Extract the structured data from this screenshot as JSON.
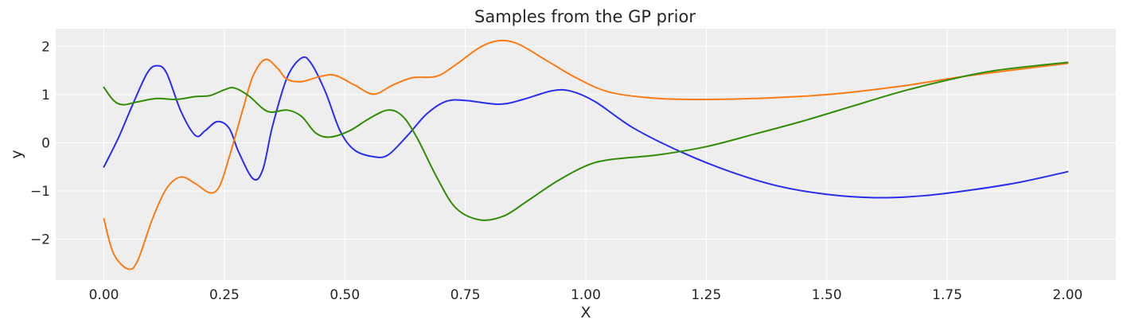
{
  "chart_data": {
    "type": "line",
    "title": "Samples from the GP prior",
    "xlabel": "X",
    "ylabel": "y",
    "xlim": [
      -0.1,
      2.1
    ],
    "ylim": [
      -2.85,
      2.37
    ],
    "xticks": [
      0.0,
      0.25,
      0.5,
      0.75,
      1.0,
      1.25,
      1.5,
      1.75,
      2.0
    ],
    "xtick_labels": [
      "0.00",
      "0.25",
      "0.50",
      "0.75",
      "1.00",
      "1.25",
      "1.50",
      "1.75",
      "2.00"
    ],
    "yticks": [
      -2,
      -1,
      0,
      1,
      2
    ],
    "ytick_labels": [
      "−2",
      "−1",
      "0",
      "1",
      "2"
    ],
    "grid": true,
    "legend": false,
    "series": [
      {
        "color": "#2a2eec",
        "points": [
          [
            0.0,
            -0.5
          ],
          [
            0.03,
            0.1
          ],
          [
            0.06,
            0.8
          ],
          [
            0.09,
            1.45
          ],
          [
            0.11,
            1.6
          ],
          [
            0.13,
            1.45
          ],
          [
            0.16,
            0.65
          ],
          [
            0.19,
            0.15
          ],
          [
            0.21,
            0.25
          ],
          [
            0.235,
            0.44
          ],
          [
            0.26,
            0.3
          ],
          [
            0.28,
            -0.2
          ],
          [
            0.31,
            -0.75
          ],
          [
            0.33,
            -0.55
          ],
          [
            0.35,
            0.35
          ],
          [
            0.38,
            1.35
          ],
          [
            0.41,
            1.76
          ],
          [
            0.43,
            1.65
          ],
          [
            0.46,
            1.05
          ],
          [
            0.49,
            0.25
          ],
          [
            0.52,
            -0.15
          ],
          [
            0.56,
            -0.29
          ],
          [
            0.59,
            -0.25
          ],
          [
            0.63,
            0.15
          ],
          [
            0.67,
            0.6
          ],
          [
            0.71,
            0.86
          ],
          [
            0.75,
            0.88
          ],
          [
            0.82,
            0.8
          ],
          [
            0.87,
            0.9
          ],
          [
            0.93,
            1.08
          ],
          [
            0.97,
            1.07
          ],
          [
            1.02,
            0.85
          ],
          [
            1.1,
            0.3
          ],
          [
            1.2,
            -0.2
          ],
          [
            1.3,
            -0.6
          ],
          [
            1.4,
            -0.9
          ],
          [
            1.5,
            -1.07
          ],
          [
            1.6,
            -1.14
          ],
          [
            1.7,
            -1.1
          ],
          [
            1.8,
            -0.98
          ],
          [
            1.9,
            -0.82
          ],
          [
            2.0,
            -0.6
          ]
        ]
      },
      {
        "color": "#fa7c17",
        "points": [
          [
            0.0,
            -1.58
          ],
          [
            0.02,
            -2.3
          ],
          [
            0.05,
            -2.62
          ],
          [
            0.07,
            -2.45
          ],
          [
            0.1,
            -1.6
          ],
          [
            0.13,
            -0.95
          ],
          [
            0.16,
            -0.71
          ],
          [
            0.19,
            -0.85
          ],
          [
            0.22,
            -1.04
          ],
          [
            0.24,
            -0.9
          ],
          [
            0.26,
            -0.3
          ],
          [
            0.29,
            0.75
          ],
          [
            0.31,
            1.4
          ],
          [
            0.335,
            1.73
          ],
          [
            0.36,
            1.55
          ],
          [
            0.38,
            1.32
          ],
          [
            0.41,
            1.27
          ],
          [
            0.45,
            1.38
          ],
          [
            0.48,
            1.4
          ],
          [
            0.52,
            1.2
          ],
          [
            0.56,
            1.01
          ],
          [
            0.6,
            1.2
          ],
          [
            0.64,
            1.35
          ],
          [
            0.69,
            1.38
          ],
          [
            0.73,
            1.62
          ],
          [
            0.78,
            1.98
          ],
          [
            0.82,
            2.12
          ],
          [
            0.86,
            2.05
          ],
          [
            0.92,
            1.7
          ],
          [
            0.98,
            1.35
          ],
          [
            1.05,
            1.05
          ],
          [
            1.15,
            0.92
          ],
          [
            1.25,
            0.9
          ],
          [
            1.35,
            0.92
          ],
          [
            1.5,
            1.0
          ],
          [
            1.65,
            1.17
          ],
          [
            1.8,
            1.4
          ],
          [
            2.0,
            1.65
          ]
        ]
      },
      {
        "color": "#328c06",
        "points": [
          [
            0.0,
            1.15
          ],
          [
            0.02,
            0.88
          ],
          [
            0.04,
            0.79
          ],
          [
            0.07,
            0.85
          ],
          [
            0.11,
            0.92
          ],
          [
            0.15,
            0.9
          ],
          [
            0.19,
            0.96
          ],
          [
            0.22,
            0.98
          ],
          [
            0.25,
            1.1
          ],
          [
            0.27,
            1.14
          ],
          [
            0.3,
            0.98
          ],
          [
            0.34,
            0.65
          ],
          [
            0.38,
            0.68
          ],
          [
            0.41,
            0.55
          ],
          [
            0.44,
            0.2
          ],
          [
            0.47,
            0.12
          ],
          [
            0.51,
            0.25
          ],
          [
            0.55,
            0.5
          ],
          [
            0.59,
            0.68
          ],
          [
            0.62,
            0.55
          ],
          [
            0.65,
            0.1
          ],
          [
            0.69,
            -0.7
          ],
          [
            0.73,
            -1.35
          ],
          [
            0.78,
            -1.6
          ],
          [
            0.83,
            -1.52
          ],
          [
            0.88,
            -1.2
          ],
          [
            0.94,
            -0.8
          ],
          [
            1.0,
            -0.48
          ],
          [
            1.05,
            -0.35
          ],
          [
            1.15,
            -0.25
          ],
          [
            1.25,
            -0.08
          ],
          [
            1.35,
            0.18
          ],
          [
            1.45,
            0.45
          ],
          [
            1.55,
            0.75
          ],
          [
            1.65,
            1.05
          ],
          [
            1.75,
            1.3
          ],
          [
            1.85,
            1.5
          ],
          [
            2.0,
            1.67
          ]
        ]
      }
    ]
  }
}
